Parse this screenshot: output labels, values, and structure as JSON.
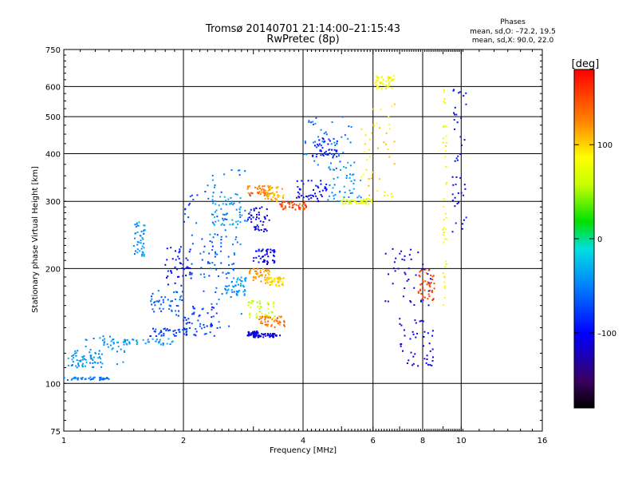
{
  "chart_data": {
    "type": "scatter",
    "title": "Tromsø 20140701 21:14:00–21:15:43",
    "subtitle": "RwPretec (8p)",
    "stats": {
      "heading": "Phases",
      "line1": "mean, sd,O: –72.2, 19.5",
      "line2": "mean, sd,X:  90.0, 22.0"
    },
    "xlabel": "Frequency [MHz]",
    "ylabel": "Stationary phase Virtual Height [km]",
    "x_scale": "log",
    "y_scale": "log",
    "xlim": [
      1,
      16
    ],
    "ylim": [
      75,
      750
    ],
    "xticks": [
      1,
      2,
      4,
      6,
      8,
      10,
      16
    ],
    "xtick_labels": [
      "1",
      "2",
      "4",
      "6",
      "8",
      "10",
      "16"
    ],
    "yticks": [
      75,
      100,
      200,
      300,
      400,
      500,
      600,
      750
    ],
    "ytick_labels": [
      "75",
      "100",
      "200",
      "300",
      "400",
      "500",
      "600",
      "750"
    ],
    "grid": true,
    "colorbar": {
      "label": "[deg]",
      "range": [
        -180,
        180
      ],
      "ticks": [
        100,
        0,
        -100
      ],
      "tick_labels": [
        "100",
        "0",
        "–100"
      ]
    },
    "point_groups": [
      {
        "x": [
          1.0,
          1.3
        ],
        "y": [
          104,
          102
        ],
        "phase": -55
      },
      {
        "x": [
          1.0,
          1.25
        ],
        "y": [
          110,
          122
        ],
        "phase": -45
      },
      {
        "x": [
          1.1,
          1.45
        ],
        "y": [
          112,
          135
        ],
        "phase": -42
      },
      {
        "x": [
          1.25,
          1.9
        ],
        "y": [
          126,
          131
        ],
        "phase": -40
      },
      {
        "x": [
          1.5,
          1.6
        ],
        "y": [
          215,
          265
        ],
        "phase": -45
      },
      {
        "x": [
          1.65,
          2.2
        ],
        "y": [
          133,
          140
        ],
        "phase": -75
      },
      {
        "x": [
          1.65,
          2.0
        ],
        "y": [
          150,
          175
        ],
        "phase": -65
      },
      {
        "x": [
          1.8,
          2.1
        ],
        "y": [
          180,
          230
        ],
        "phase": -95
      },
      {
        "x": [
          2.0,
          2.45
        ],
        "y": [
          133,
          160
        ],
        "phase": -80
      },
      {
        "x": [
          2.0,
          2.6
        ],
        "y": [
          190,
          320
        ],
        "phase": -70
      },
      {
        "x": [
          2.2,
          2.8
        ],
        "y": [
          140,
          230
        ],
        "phase": -60
      },
      {
        "x": [
          2.3,
          2.95
        ],
        "y": [
          230,
          370
        ],
        "phase": -50
      },
      {
        "x": [
          2.35,
          2.8
        ],
        "y": [
          260,
          310
        ],
        "phase": -35
      },
      {
        "x": [
          2.55,
          2.9
        ],
        "y": [
          170,
          190
        ],
        "phase": -40
      },
      {
        "x": [
          2.9,
          3.1
        ],
        "y": [
          133,
          137
        ],
        "phase": -110
      },
      {
        "x": [
          3.0,
          3.5
        ],
        "y": [
          132,
          135
        ],
        "phase": -110
      },
      {
        "x": [
          2.9,
          3.4
        ],
        "y": [
          148,
          165
        ],
        "phase": 60
      },
      {
        "x": [
          3.1,
          3.6
        ],
        "y": [
          140,
          150
        ],
        "phase": 130
      },
      {
        "x": [
          2.9,
          3.3
        ],
        "y": [
          185,
          200
        ],
        "phase": 120
      },
      {
        "x": [
          3.2,
          3.6
        ],
        "y": [
          180,
          190
        ],
        "phase": 100
      },
      {
        "x": [
          3.0,
          3.4
        ],
        "y": [
          205,
          225
        ],
        "phase": -105
      },
      {
        "x": [
          2.9,
          3.3
        ],
        "y": [
          250,
          290
        ],
        "phase": -110
      },
      {
        "x": [
          2.9,
          3.3
        ],
        "y": [
          310,
          330
        ],
        "phase": 130
      },
      {
        "x": [
          3.2,
          3.6
        ],
        "y": [
          300,
          330
        ],
        "phase": 110
      },
      {
        "x": [
          3.5,
          4.1
        ],
        "y": [
          285,
          300
        ],
        "phase": 150
      },
      {
        "x": [
          3.8,
          4.6
        ],
        "y": [
          300,
          340
        ],
        "phase": -100
      },
      {
        "x": [
          4.0,
          5.3
        ],
        "y": [
          360,
          500
        ],
        "phase": -55
      },
      {
        "x": [
          4.2,
          4.9
        ],
        "y": [
          390,
          440
        ],
        "phase": -90
      },
      {
        "x": [
          4.6,
          5.6
        ],
        "y": [
          300,
          380
        ],
        "phase": -40
      },
      {
        "x": [
          5.0,
          6.0
        ],
        "y": [
          295,
          305
        ],
        "phase": 70
      },
      {
        "x": [
          5.6,
          6.8
        ],
        "y": [
          305,
          560
        ],
        "phase": 95
      },
      {
        "x": [
          6.1,
          6.8
        ],
        "y": [
          590,
          640
        ],
        "phase": 85
      },
      {
        "x": [
          9.0,
          9.2
        ],
        "y": [
          160,
          600
        ],
        "phase": 85
      },
      {
        "x": [
          6.4,
          8.4
        ],
        "y": [
          160,
          230
        ],
        "phase": -110
      },
      {
        "x": [
          7.0,
          8.6
        ],
        "y": [
          110,
          150
        ],
        "phase": -110
      },
      {
        "x": [
          9.5,
          10.3
        ],
        "y": [
          240,
          600
        ],
        "phase": -100
      },
      {
        "x": [
          7.8,
          8.6
        ],
        "y": [
          165,
          200
        ],
        "phase": 150
      }
    ]
  }
}
